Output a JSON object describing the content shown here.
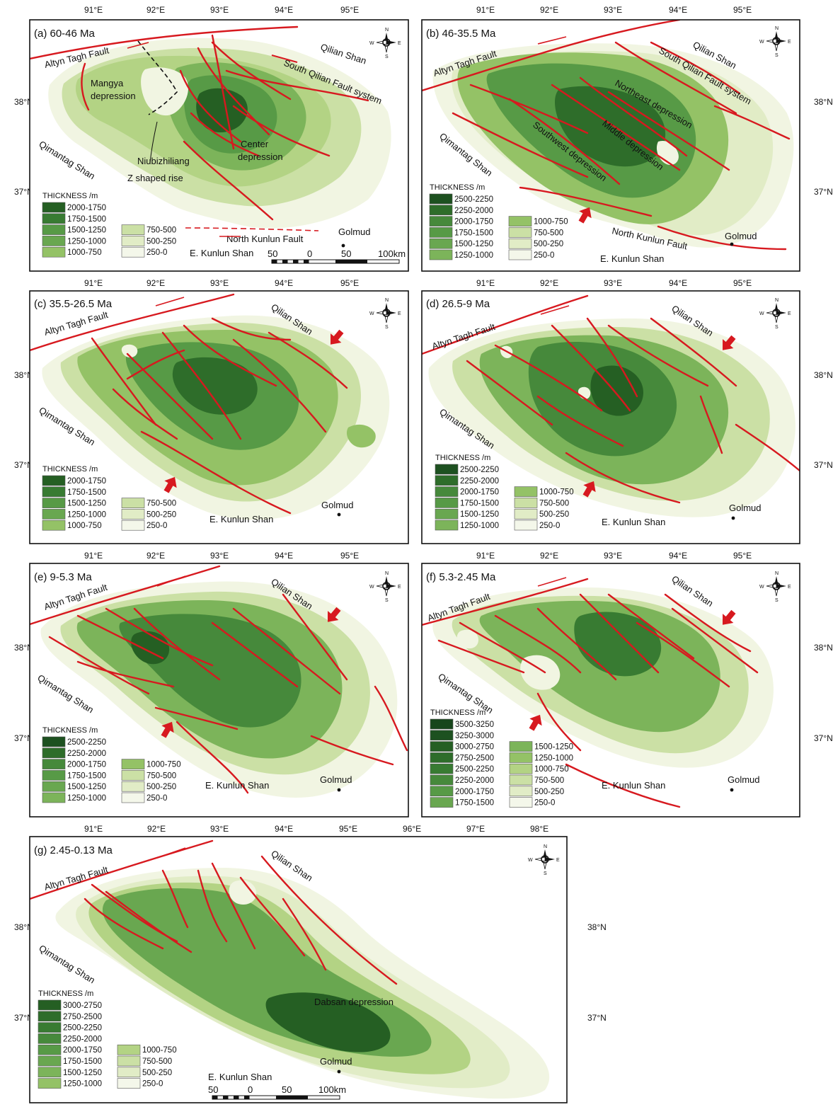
{
  "colors": {
    "c0": "#f1f5e2",
    "c1": "#e1ecc6",
    "c2": "#cbe0a5",
    "c3": "#b3d384",
    "c4": "#94c266",
    "c5": "#7cb45a",
    "c6": "#69a750",
    "c7": "#579a46",
    "c8": "#46893b",
    "c9": "#387b32",
    "c10": "#2e6d2a",
    "c11": "#255f23",
    "c12": "#1d5120",
    "c13": "#17461b",
    "fault": "#d7191f"
  },
  "compass": {
    "n": "N",
    "s": "S",
    "e": "E",
    "w": "W"
  },
  "axis": {
    "lat_38": "38°N",
    "lat_37": "37°N"
  },
  "panels": [
    {
      "id": "a",
      "title": "(a) 60-46 Ma",
      "lon_ticks": [
        "91°E",
        "92°E",
        "93°E",
        "94°E",
        "95°E"
      ],
      "labels": {
        "altyn": "Altyn Tagh Fault",
        "qilian": "Qilian Shan",
        "south_qilian": "South Qilian Fault system",
        "mangya_1": "Mangya",
        "mangya_2": "depression",
        "niubi_1": "Niubizhiliang",
        "niubi_2": "Z shaped  rise",
        "center_1": "Center",
        "center_2": "depression",
        "qimantag": "Qimantag Shan",
        "north_kunlun": "North Kunlun Fault",
        "kunlun": "E. Kunlun Shan",
        "golmud": "Golmud"
      },
      "scale": [
        "50",
        "0",
        "50",
        "100km"
      ],
      "legend": {
        "title": "THICKNESS /m",
        "col1": [
          {
            "label": "2000-1750",
            "color": "#255f23"
          },
          {
            "label": "1750-1500",
            "color": "#387b32"
          },
          {
            "label": "1500-1250",
            "color": "#579a46"
          },
          {
            "label": "1250-1000",
            "color": "#69a750"
          },
          {
            "label": "1000-750",
            "color": "#94c266"
          }
        ],
        "col2": [
          {
            "label": "750-500",
            "color": "#cbe0a5"
          },
          {
            "label": "500-250",
            "color": "#e1ecc6"
          },
          {
            "label": "250-0",
            "color": "#f4f7ea"
          }
        ]
      }
    },
    {
      "id": "b",
      "title": "(b) 46-35.5 Ma",
      "lon_ticks": [
        "91°E",
        "92°E",
        "93°E",
        "94°E",
        "95°E"
      ],
      "labels": {
        "altyn": "Altyn Tagh Fault",
        "qilian": "Qilian Shan",
        "south_qilian": "South Qilian Fault system",
        "northeast": "Northeast depression",
        "middle": "Middle depression",
        "southwest": "Southwest depression",
        "qimantag": "Qimantag Shan",
        "north_kunlun": "North Kunlun Fault",
        "kunlun": "E. Kunlun Shan",
        "golmud": "Golmud"
      },
      "legend": {
        "title": "THICKNESS /m",
        "col1": [
          {
            "label": "2500-2250",
            "color": "#1d5120"
          },
          {
            "label": "2250-2000",
            "color": "#2e6d2a"
          },
          {
            "label": "2000-1750",
            "color": "#46893b"
          },
          {
            "label": "1750-1500",
            "color": "#579a46"
          },
          {
            "label": "1500-1250",
            "color": "#69a750"
          },
          {
            "label": "1250-1000",
            "color": "#7cb45a"
          }
        ],
        "col2": [
          {
            "label": "1000-750",
            "color": "#94c266"
          },
          {
            "label": "750-500",
            "color": "#cbe0a5"
          },
          {
            "label": "500-250",
            "color": "#e1ecc6"
          },
          {
            "label": "250-0",
            "color": "#f4f7ea"
          }
        ]
      }
    },
    {
      "id": "c",
      "title": "(c) 35.5-26.5 Ma",
      "lon_ticks": [
        "91°E",
        "92°E",
        "93°E",
        "94°E",
        "95°E"
      ],
      "labels": {
        "altyn": "Altyn Tagh Fault",
        "qilian": "Qilian Shan",
        "qimantag": "Qimantag Shan",
        "kunlun": "E. Kunlun Shan",
        "golmud": "Golmud"
      },
      "legend": {
        "title": "THICKNESS /m",
        "col1": [
          {
            "label": "2000-1750",
            "color": "#255f23"
          },
          {
            "label": "1750-1500",
            "color": "#387b32"
          },
          {
            "label": "1500-1250",
            "color": "#579a46"
          },
          {
            "label": "1250-1000",
            "color": "#69a750"
          },
          {
            "label": "1000-750",
            "color": "#94c266"
          }
        ],
        "col2": [
          {
            "label": "750-500",
            "color": "#cbe0a5"
          },
          {
            "label": "500-250",
            "color": "#e1ecc6"
          },
          {
            "label": "250-0",
            "color": "#f4f7ea"
          }
        ]
      }
    },
    {
      "id": "d",
      "title": "(d) 26.5-9 Ma",
      "lon_ticks": [
        "91°E",
        "92°E",
        "93°E",
        "94°E",
        "95°E"
      ],
      "labels": {
        "altyn": "Altyn Tagh Fault",
        "qilian": "Qilian Shan",
        "qimantag": "Qimantag Shan",
        "kunlun": "E. Kunlun Shan",
        "golmud": "Golmud"
      },
      "legend": {
        "title": "THICKNESS /m",
        "col1": [
          {
            "label": "2500-2250",
            "color": "#1d5120"
          },
          {
            "label": "2250-2000",
            "color": "#2e6d2a"
          },
          {
            "label": "2000-1750",
            "color": "#46893b"
          },
          {
            "label": "1750-1500",
            "color": "#579a46"
          },
          {
            "label": "1500-1250",
            "color": "#69a750"
          },
          {
            "label": "1250-1000",
            "color": "#7cb45a"
          }
        ],
        "col2": [
          {
            "label": "1000-750",
            "color": "#94c266"
          },
          {
            "label": "750-500",
            "color": "#cbe0a5"
          },
          {
            "label": "500-250",
            "color": "#e1ecc6"
          },
          {
            "label": "250-0",
            "color": "#f4f7ea"
          }
        ]
      }
    },
    {
      "id": "e",
      "title": "(e) 9-5.3 Ma",
      "lon_ticks": [
        "91°E",
        "92°E",
        "93°E",
        "94°E",
        "95°E"
      ],
      "labels": {
        "altyn": "Altyn Tagh Fault",
        "qilian": "Qilian Shan",
        "qimantag": "Qimantag Shan",
        "kunlun": "E. Kunlun Shan",
        "golmud": "Golmud"
      },
      "legend": {
        "title": "THICKNESS /m",
        "col1": [
          {
            "label": "2500-2250",
            "color": "#1d5120"
          },
          {
            "label": "2250-2000",
            "color": "#2e6d2a"
          },
          {
            "label": "2000-1750",
            "color": "#46893b"
          },
          {
            "label": "1750-1500",
            "color": "#579a46"
          },
          {
            "label": "1500-1250",
            "color": "#69a750"
          },
          {
            "label": "1250-1000",
            "color": "#7cb45a"
          }
        ],
        "col2": [
          {
            "label": "1000-750",
            "color": "#94c266"
          },
          {
            "label": "750-500",
            "color": "#cbe0a5"
          },
          {
            "label": "500-250",
            "color": "#e1ecc6"
          },
          {
            "label": "250-0",
            "color": "#f4f7ea"
          }
        ]
      }
    },
    {
      "id": "f",
      "title": "(f) 5.3-2.45 Ma",
      "lon_ticks": [
        "91°E",
        "92°E",
        "93°E",
        "94°E",
        "95°E"
      ],
      "labels": {
        "altyn": "Altyn Tagh Fault",
        "qilian": "Qilian Shan",
        "qimantag": "Qimantag Shan",
        "kunlun": "E. Kunlun Shan",
        "golmud": "Golmud"
      },
      "legend": {
        "title": "THICKNESS /m",
        "col1": [
          {
            "label": "3500-3250",
            "color": "#17461b"
          },
          {
            "label": "3250-3000",
            "color": "#1d5120"
          },
          {
            "label": "3000-2750",
            "color": "#255f23"
          },
          {
            "label": "2750-2500",
            "color": "#2e6d2a"
          },
          {
            "label": "2500-2250",
            "color": "#387b32"
          },
          {
            "label": "2250-2000",
            "color": "#46893b"
          },
          {
            "label": "2000-1750",
            "color": "#579a46"
          },
          {
            "label": "1750-1500",
            "color": "#69a750"
          }
        ],
        "col2": [
          {
            "label": "1500-1250",
            "color": "#7cb45a"
          },
          {
            "label": "1250-1000",
            "color": "#94c266"
          },
          {
            "label": "1000-750",
            "color": "#b3d384"
          },
          {
            "label": "750-500",
            "color": "#cbe0a5"
          },
          {
            "label": "500-250",
            "color": "#e1ecc6"
          },
          {
            "label": "250-0",
            "color": "#f4f7ea"
          }
        ]
      }
    },
    {
      "id": "g",
      "title": "(g) 2.45-0.13 Ma",
      "lon_ticks": [
        "91°E",
        "92°E",
        "93°E",
        "94°E",
        "95°E",
        "96°E",
        "97°E",
        "98°E"
      ],
      "labels": {
        "altyn": "Altyn Tagh Fault",
        "qilian": "Qilian Shan",
        "qimantag": "Qimantag Shan",
        "dabsan": "Dabsan depression",
        "kunlun": "E. Kunlun Shan",
        "golmud": "Golmud"
      },
      "scale": [
        "50",
        "0",
        "50",
        "100km"
      ],
      "legend": {
        "title": "THICKNESS /m",
        "col1": [
          {
            "label": "3000-2750",
            "color": "#255f23"
          },
          {
            "label": "2750-2500",
            "color": "#2e6d2a"
          },
          {
            "label": "2500-2250",
            "color": "#387b32"
          },
          {
            "label": "2250-2000",
            "color": "#46893b"
          },
          {
            "label": "2000-1750",
            "color": "#579a46"
          },
          {
            "label": "1750-1500",
            "color": "#69a750"
          },
          {
            "label": "1500-1250",
            "color": "#7cb45a"
          },
          {
            "label": "1250-1000",
            "color": "#94c266"
          }
        ],
        "col2": [
          {
            "label": "1000-750",
            "color": "#b3d384"
          },
          {
            "label": "750-500",
            "color": "#cbe0a5"
          },
          {
            "label": "500-250",
            "color": "#e1ecc6"
          },
          {
            "label": "250-0",
            "color": "#f4f7ea"
          }
        ]
      }
    }
  ]
}
